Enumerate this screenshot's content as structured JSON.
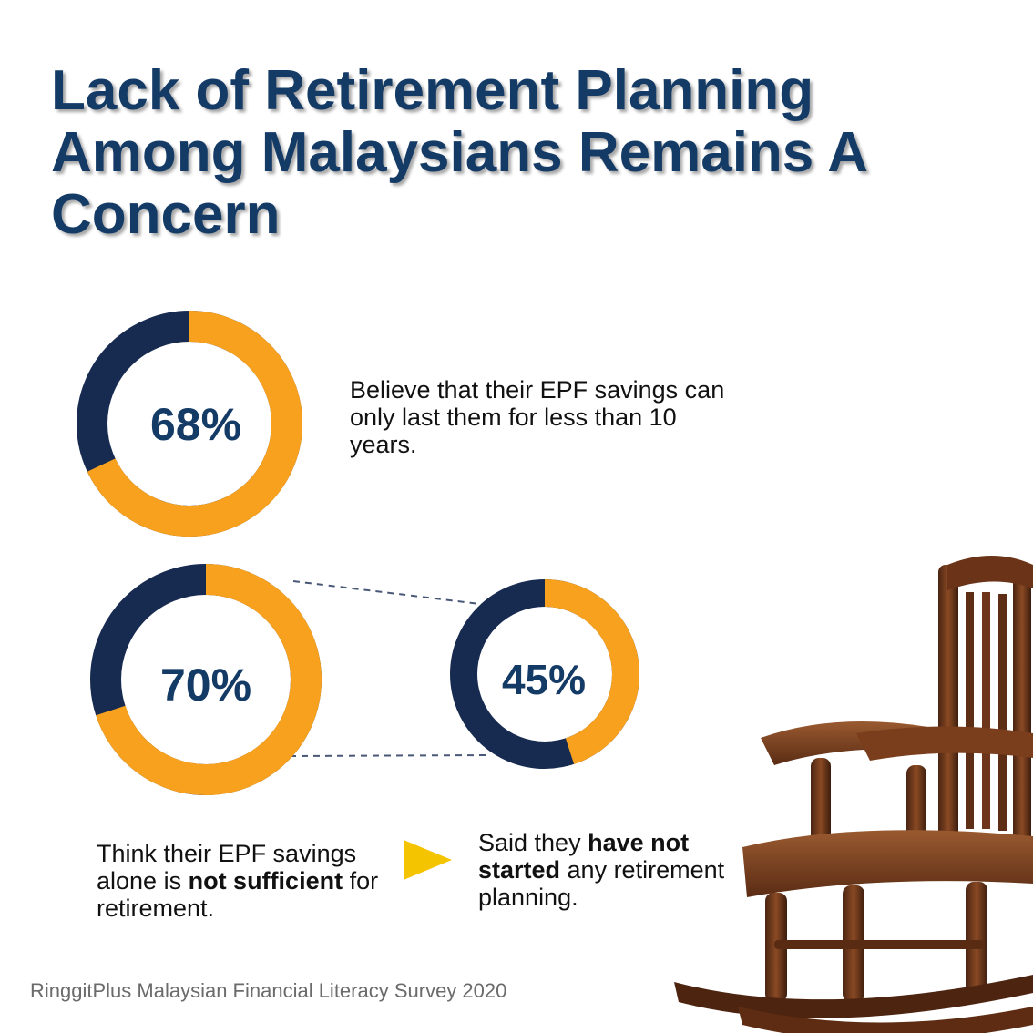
{
  "title": {
    "lines": [
      "Lack of Retirement Planning",
      "Among Malaysians Remains A",
      "Concern"
    ]
  },
  "colors": {
    "title": "#143a66",
    "ring_filled": "#f7a11e",
    "ring_rest": "#172a50",
    "arrow": "#f5c400",
    "value_text": "#143a66"
  },
  "chart_data": [
    {
      "type": "pie",
      "value": 68,
      "label": "68%",
      "caption": {
        "text": "Believe that their EPF savings can only last them for less than 10 years."
      }
    },
    {
      "type": "pie",
      "value": 70,
      "label": "70%",
      "caption": {
        "before": "Think their EPF savings alone is ",
        "bold": "not sufficient",
        "after": " for retirement."
      }
    },
    {
      "type": "pie",
      "value": 45,
      "label": "45%",
      "caption": {
        "before": "Said they ",
        "bold": "have not started",
        "after": " any retirement planning."
      }
    }
  ],
  "source": "RinggitPlus Malaysian Financial Literacy Survey 2020",
  "icons": {
    "arrow": "play-triangle-icon",
    "image": "rocking-chair-illustration"
  }
}
